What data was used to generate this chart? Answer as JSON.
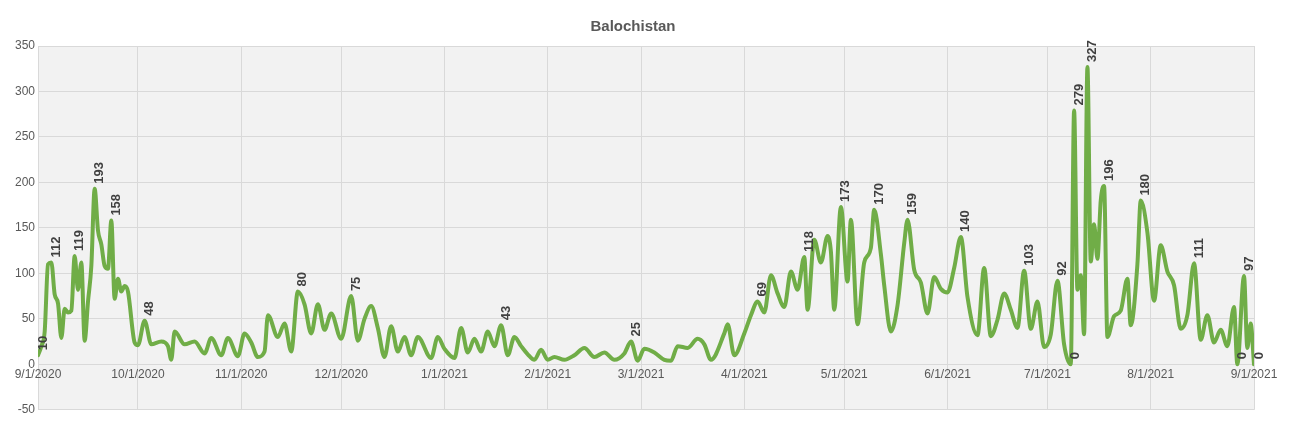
{
  "chart_data": {
    "type": "line",
    "title": "Balochistan",
    "x": [
      "2020-09-01",
      "2020-09-02",
      "2020-09-03",
      "2020-09-04",
      "2020-09-05",
      "2020-09-06",
      "2020-09-07",
      "2020-09-08",
      "2020-09-09",
      "2020-09-10",
      "2020-09-11",
      "2020-09-12",
      "2020-09-13",
      "2020-09-14",
      "2020-09-15",
      "2020-09-16",
      "2020-09-17",
      "2020-09-18",
      "2020-09-19",
      "2020-09-20",
      "2020-09-21",
      "2020-09-22",
      "2020-09-23",
      "2020-09-24",
      "2020-09-25",
      "2020-09-26",
      "2020-09-27",
      "2020-09-28",
      "2020-09-30",
      "2020-10-01",
      "2020-10-03",
      "2020-10-05",
      "2020-10-08",
      "2020-10-10",
      "2020-10-11",
      "2020-10-12",
      "2020-10-15",
      "2020-10-18",
      "2020-10-21",
      "2020-10-23",
      "2020-10-26",
      "2020-10-28",
      "2020-10-31",
      "2020-11-02",
      "2020-11-04",
      "2020-11-06",
      "2020-11-08",
      "2020-11-09",
      "2020-11-12",
      "2020-11-14",
      "2020-11-16",
      "2020-11-18",
      "2020-11-20",
      "2020-11-22",
      "2020-11-24",
      "2020-11-26",
      "2020-11-28",
      "2020-12-01",
      "2020-12-04",
      "2020-12-06",
      "2020-12-08",
      "2020-12-10",
      "2020-12-12",
      "2020-12-14",
      "2020-12-16",
      "2020-12-18",
      "2020-12-20",
      "2020-12-22",
      "2020-12-24",
      "2020-12-28",
      "2020-12-30",
      "2021-01-01",
      "2021-01-04",
      "2021-01-06",
      "2021-01-08",
      "2021-01-10",
      "2021-01-12",
      "2021-01-14",
      "2021-01-16",
      "2021-01-18",
      "2021-01-20",
      "2021-01-22",
      "2021-01-24",
      "2021-01-26",
      "2021-01-28",
      "2021-01-30",
      "2021-02-01",
      "2021-02-03",
      "2021-02-06",
      "2021-02-09",
      "2021-02-12",
      "2021-02-15",
      "2021-02-18",
      "2021-02-21",
      "2021-02-24",
      "2021-02-26",
      "2021-02-28",
      "2021-03-02",
      "2021-03-05",
      "2021-03-08",
      "2021-03-10",
      "2021-03-12",
      "2021-03-15",
      "2021-03-18",
      "2021-03-20",
      "2021-03-22",
      "2021-03-26",
      "2021-03-27",
      "2021-03-29",
      "2021-04-01",
      "2021-04-03",
      "2021-04-05",
      "2021-04-07",
      "2021-04-09",
      "2021-04-11",
      "2021-04-13",
      "2021-04-15",
      "2021-04-17",
      "2021-04-19",
      "2021-04-20",
      "2021-04-22",
      "2021-04-24",
      "2021-04-26",
      "2021-04-27",
      "2021-04-28",
      "2021-04-30",
      "2021-05-02",
      "2021-05-03",
      "2021-05-05",
      "2021-05-07",
      "2021-05-09",
      "2021-05-10",
      "2021-05-12",
      "2021-05-13",
      "2021-05-15",
      "2021-05-17",
      "2021-05-19",
      "2021-05-20",
      "2021-05-22",
      "2021-05-24",
      "2021-05-26",
      "2021-05-28",
      "2021-05-30",
      "2021-06-01",
      "2021-06-03",
      "2021-06-05",
      "2021-06-07",
      "2021-06-10",
      "2021-06-12",
      "2021-06-14",
      "2021-06-16",
      "2021-06-18",
      "2021-06-20",
      "2021-06-22",
      "2021-06-24",
      "2021-06-26",
      "2021-06-28",
      "2021-06-30",
      "2021-07-02",
      "2021-07-04",
      "2021-07-06",
      "2021-07-08",
      "2021-07-09",
      "2021-07-10",
      "2021-07-11",
      "2021-07-12",
      "2021-07-13",
      "2021-07-14",
      "2021-07-15",
      "2021-07-16",
      "2021-07-17",
      "2021-07-18",
      "2021-07-19",
      "2021-07-21",
      "2021-07-23",
      "2021-07-25",
      "2021-07-26",
      "2021-07-28",
      "2021-07-29",
      "2021-07-31",
      "2021-08-02",
      "2021-08-04",
      "2021-08-06",
      "2021-08-08",
      "2021-08-10",
      "2021-08-12",
      "2021-08-14",
      "2021-08-16",
      "2021-08-18",
      "2021-08-20",
      "2021-08-22",
      "2021-08-24",
      "2021-08-26",
      "2021-08-27",
      "2021-08-29",
      "2021-08-30",
      "2021-08-31",
      "2021-09-01"
    ],
    "series": [
      {
        "color": "#70ad47",
        "values": [
          10,
          20,
          36,
          110,
          112,
          77,
          67,
          29,
          61,
          57,
          59,
          119,
          82,
          112,
          26,
          69,
          108,
          193,
          147,
          132,
          108,
          105,
          158,
          72,
          94,
          80,
          86,
          80,
          24,
          21,
          48,
          22,
          25,
          20,
          5,
          36,
          22,
          25,
          12,
          29,
          10,
          29,
          9,
          34,
          24,
          8,
          14,
          54,
          30,
          45,
          14,
          80,
          66,
          34,
          66,
          38,
          56,
          28,
          75,
          26,
          50,
          64,
          40,
          8,
          42,
          14,
          30,
          10,
          30,
          7,
          30,
          17,
          7,
          40,
          13,
          28,
          14,
          36,
          20,
          43,
          10,
          30,
          20,
          11,
          5,
          16,
          5,
          8,
          5,
          10,
          18,
          8,
          13,
          5,
          12,
          25,
          4,
          17,
          13,
          5,
          4,
          20,
          18,
          28,
          22,
          5,
          34,
          44,
          10,
          34,
          54,
          69,
          57,
          98,
          78,
          63,
          102,
          82,
          118,
          60,
          137,
          112,
          141,
          124,
          60,
          173,
          91,
          159,
          44,
          112,
          128,
          170,
          121,
          87,
          36,
          65,
          133,
          159,
          104,
          90,
          56,
          96,
          83,
          79,
          106,
          140,
          74,
          32,
          106,
          31,
          49,
          78,
          60,
          40,
          103,
          39,
          69,
          19,
          33,
          92,
          22,
          0,
          279,
          82,
          98,
          33,
          327,
          113,
          154,
          116,
          180,
          196,
          30,
          53,
          59,
          94,
          43,
          110,
          180,
          145,
          70,
          131,
          102,
          87,
          39,
          54,
          111,
          27,
          54,
          24,
          38,
          20,
          63,
          0,
          97,
          18,
          45,
          0
        ],
        "value_labels": [
          "10",
          null,
          null,
          null,
          "112",
          null,
          null,
          null,
          null,
          null,
          null,
          "119",
          null,
          null,
          null,
          null,
          null,
          "193",
          null,
          null,
          null,
          null,
          "158",
          null,
          null,
          null,
          null,
          null,
          null,
          null,
          "48",
          null,
          null,
          null,
          null,
          null,
          null,
          null,
          null,
          null,
          null,
          null,
          null,
          null,
          null,
          null,
          null,
          null,
          null,
          null,
          null,
          "80",
          null,
          null,
          null,
          null,
          null,
          null,
          "75",
          null,
          null,
          null,
          null,
          null,
          null,
          null,
          null,
          null,
          null,
          null,
          null,
          null,
          null,
          null,
          null,
          null,
          null,
          null,
          null,
          "43",
          null,
          null,
          null,
          null,
          null,
          null,
          null,
          null,
          null,
          null,
          null,
          null,
          null,
          null,
          null,
          "25",
          null,
          null,
          null,
          null,
          null,
          null,
          null,
          null,
          null,
          null,
          null,
          null,
          null,
          null,
          null,
          "69",
          null,
          null,
          null,
          null,
          null,
          null,
          "118",
          null,
          null,
          null,
          null,
          null,
          null,
          "173",
          null,
          null,
          null,
          null,
          null,
          "170",
          null,
          null,
          null,
          null,
          null,
          "159",
          null,
          null,
          null,
          null,
          null,
          null,
          null,
          "140",
          null,
          null,
          null,
          null,
          null,
          null,
          null,
          null,
          "103",
          null,
          null,
          null,
          null,
          "92",
          null,
          "0",
          "279",
          null,
          null,
          null,
          "327",
          null,
          null,
          null,
          null,
          "196",
          null,
          null,
          null,
          null,
          null,
          null,
          "180",
          null,
          null,
          null,
          null,
          null,
          null,
          null,
          "111",
          null,
          null,
          null,
          null,
          null,
          null,
          "0",
          "97",
          null,
          null,
          "0"
        ]
      }
    ],
    "xlim": [
      "2020-09-01",
      "2021-09-01"
    ],
    "xticks": [
      {
        "value": "2020-09-01",
        "label": "9/1/2020"
      },
      {
        "value": "2020-10-01",
        "label": "10/1/2020"
      },
      {
        "value": "2020-11-01",
        "label": "11/1/2020"
      },
      {
        "value": "2020-12-01",
        "label": "12/1/2020"
      },
      {
        "value": "2021-01-01",
        "label": "1/1/2021"
      },
      {
        "value": "2021-02-01",
        "label": "2/1/2021"
      },
      {
        "value": "2021-03-01",
        "label": "3/1/2021"
      },
      {
        "value": "2021-04-01",
        "label": "4/1/2021"
      },
      {
        "value": "2021-05-01",
        "label": "5/1/2021"
      },
      {
        "value": "2021-06-01",
        "label": "6/1/2021"
      },
      {
        "value": "2021-07-01",
        "label": "7/1/2021"
      },
      {
        "value": "2021-08-01",
        "label": "8/1/2021"
      },
      {
        "value": "2021-09-01",
        "label": "9/1/2021"
      }
    ],
    "ylim": [
      -50,
      350
    ],
    "yticks": [
      -50,
      0,
      50,
      100,
      150,
      200,
      250,
      300,
      350
    ],
    "grid": true,
    "marker": "none"
  }
}
